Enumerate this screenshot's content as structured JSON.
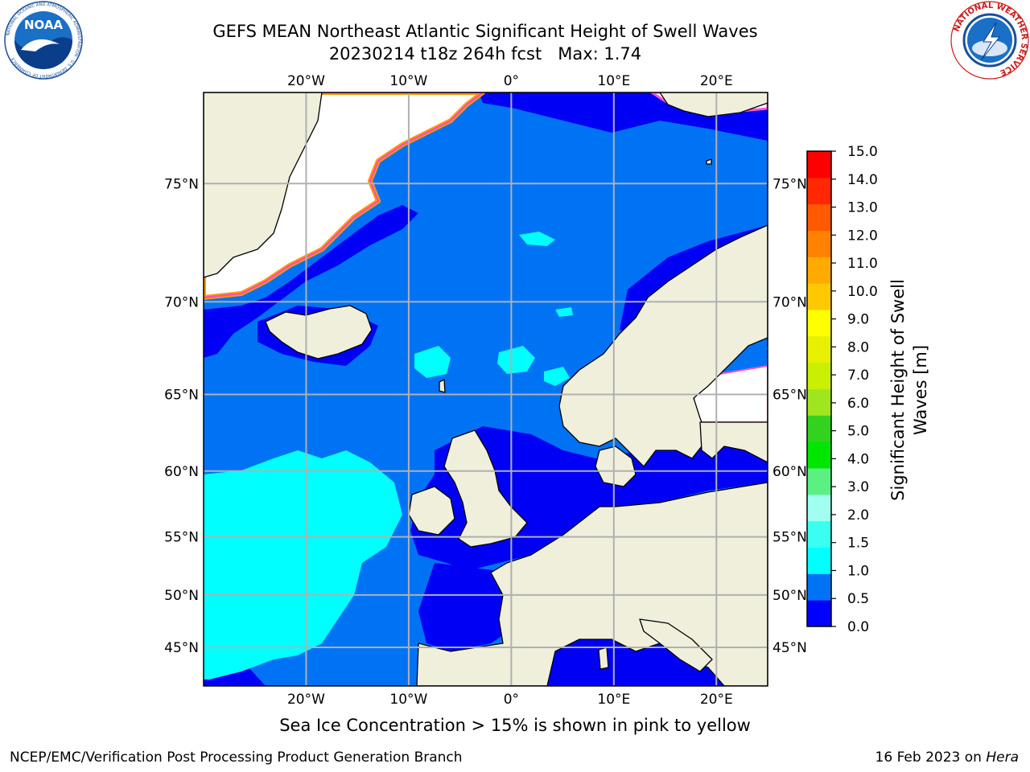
{
  "title": {
    "line1": "GEFS MEAN Northeast Atlantic Significant Height of Swell Waves",
    "line2": "20230214 t18z 264h fcst   Max: 1.74"
  },
  "map": {
    "lon_range": [
      -30,
      25
    ],
    "lat_range": [
      41,
      78
    ],
    "lon_ticks": [
      {
        "lon": -20,
        "label": "20°W"
      },
      {
        "lon": -10,
        "label": "10°W"
      },
      {
        "lon": 0,
        "label": "0°"
      },
      {
        "lon": 10,
        "label": "10°E"
      },
      {
        "lon": 20,
        "label": "20°E"
      }
    ],
    "lat_ticks": [
      {
        "lat": 75,
        "label": "75°N"
      },
      {
        "lat": 70,
        "label": "70°N"
      },
      {
        "lat": 65,
        "label": "65°N"
      },
      {
        "lat": 60,
        "label": "60°N"
      },
      {
        "lat": 55,
        "label": "55°N"
      },
      {
        "lat": 50,
        "label": "50°N"
      },
      {
        "lat": 45,
        "label": "45°N"
      }
    ],
    "grid": true,
    "colors": {
      "ocean_low": "#0000f5",
      "ocean_mid": "#0073f5",
      "ocean_high": "#00ffff",
      "land": "#efefdc",
      "ice": "#ffffff",
      "grid": "#b0b0b0"
    }
  },
  "colorbar": {
    "label": "Significant Height of Swell Waves [m]",
    "levels": [
      "0.0",
      "0.5",
      "1.0",
      "1.5",
      "2.0",
      "3.0",
      "4.0",
      "5.0",
      "6.0",
      "7.0",
      "8.0",
      "9.0",
      "10.0",
      "11.0",
      "12.0",
      "13.0",
      "14.0",
      "15.0"
    ],
    "colors": [
      "#0000ff",
      "#0073f5",
      "#00ffff",
      "#38fff0",
      "#a0fff0",
      "#5af082",
      "#00e600",
      "#32d21e",
      "#a0e61e",
      "#c8f000",
      "#e6f000",
      "#ffff00",
      "#ffc800",
      "#ffaa00",
      "#ff8200",
      "#ff5a00",
      "#ff2800",
      "#ff0000"
    ]
  },
  "caption": "Sea Ice Concentration > 15% is shown in pink to yellow",
  "footer": {
    "left": "NCEP/EMC/Verification Post Processing Product Generation Branch",
    "right_prefix": "16 Feb 2023 on ",
    "right_host": "Hera"
  },
  "logos": {
    "noaa": {
      "text": "NOAA",
      "ring": "NATIONAL OCEANIC AND ATMOSPHERIC ADMINISTRATION · U.S. DEPARTMENT OF COMMERCE"
    },
    "nws": {
      "ring": "NATIONAL WEATHER SERVICE"
    }
  }
}
